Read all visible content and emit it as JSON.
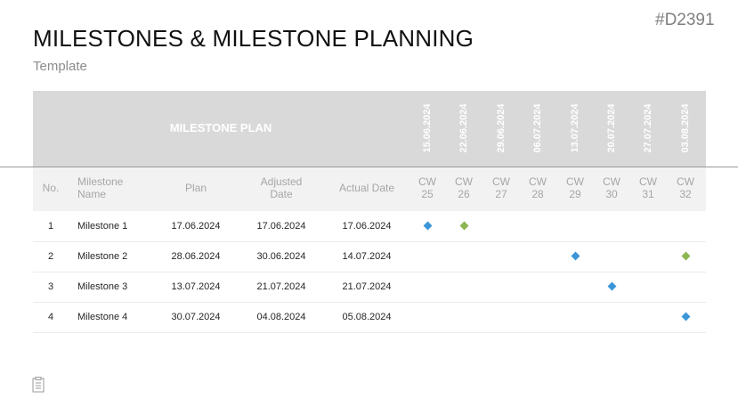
{
  "doc_id": "#D2391",
  "title": "MILESTONES & MILESTONE PLANNING",
  "subtitle": "Template",
  "plan_label": "MILESTONE PLAN",
  "dates": [
    "15.06.2024",
    "22.06.2024",
    "29.06.2024",
    "06.07.2024",
    "13.07.2024",
    "20.07.2024",
    "27.07.2024",
    "03.08.2024"
  ],
  "columns": {
    "no": "No.",
    "milestone_line1": "Milestone",
    "milestone_line2": "Name",
    "plan": "Plan",
    "adjusted_line1": "Adjusted",
    "adjusted_line2": "Date",
    "actual": "Actual Date"
  },
  "weeks": [
    {
      "cw": "CW",
      "num": "25"
    },
    {
      "cw": "CW",
      "num": "26"
    },
    {
      "cw": "CW",
      "num": "27"
    },
    {
      "cw": "CW",
      "num": "28"
    },
    {
      "cw": "CW",
      "num": "29"
    },
    {
      "cw": "CW",
      "num": "30"
    },
    {
      "cw": "CW",
      "num": "31"
    },
    {
      "cw": "CW",
      "num": "32"
    }
  ],
  "colors": {
    "plan_marker": "#3b96d8",
    "actual_marker": "#8db552"
  },
  "rows": [
    {
      "no": "1",
      "name": "Milestone 1",
      "plan": "17.06.2024",
      "adjusted": "17.06.2024",
      "actual": "17.06.2024",
      "markers": [
        {
          "week": 0,
          "kind": "plan"
        },
        {
          "week": 1,
          "kind": "actual"
        }
      ]
    },
    {
      "no": "2",
      "name": "Milestone 2",
      "plan": "28.06.2024",
      "adjusted": "30.06.2024",
      "actual": "14.07.2024",
      "markers": [
        {
          "week": 4,
          "kind": "plan"
        },
        {
          "week": 7,
          "kind": "actual"
        }
      ]
    },
    {
      "no": "3",
      "name": "Milestone 3",
      "plan": "13.07.2024",
      "adjusted": "21.07.2024",
      "actual": "21.07.2024",
      "markers": [
        {
          "week": 5,
          "kind": "plan"
        }
      ]
    },
    {
      "no": "4",
      "name": "Milestone 4",
      "plan": "30.07.2024",
      "adjusted": "04.08.2024",
      "actual": "05.08.2024",
      "markers": [
        {
          "week": 7,
          "kind": "plan"
        }
      ]
    }
  ]
}
